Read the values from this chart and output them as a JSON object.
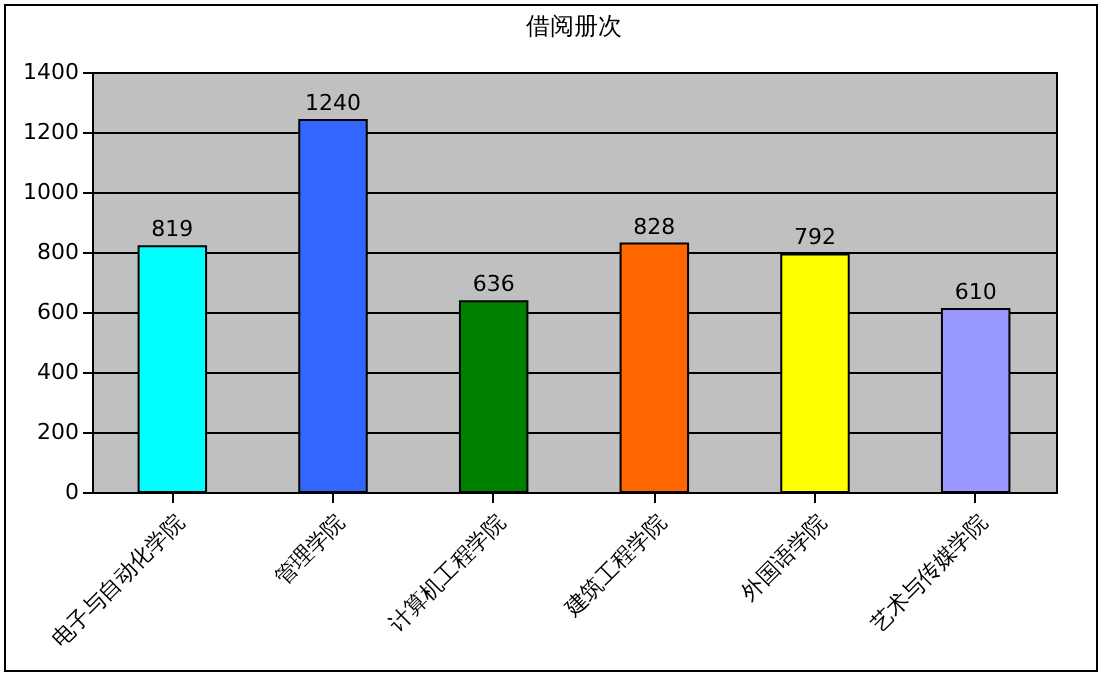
{
  "chart_data": {
    "type": "bar",
    "title": "借阅册次",
    "categories": [
      "电子与自动化学院",
      "管理学院",
      "计算机工程学院",
      "建筑工程学院",
      "外国语学院",
      "艺术与传媒学院"
    ],
    "values": [
      819,
      1240,
      636,
      828,
      792,
      610
    ],
    "colors": [
      "#00ffff",
      "#3366ff",
      "#008000",
      "#ff6600",
      "#ffff00",
      "#9999ff"
    ],
    "ylim": [
      0,
      1400
    ],
    "yticks": [
      0,
      200,
      400,
      600,
      800,
      1000,
      1200,
      1400
    ],
    "grid": "y",
    "data_labels": true
  }
}
